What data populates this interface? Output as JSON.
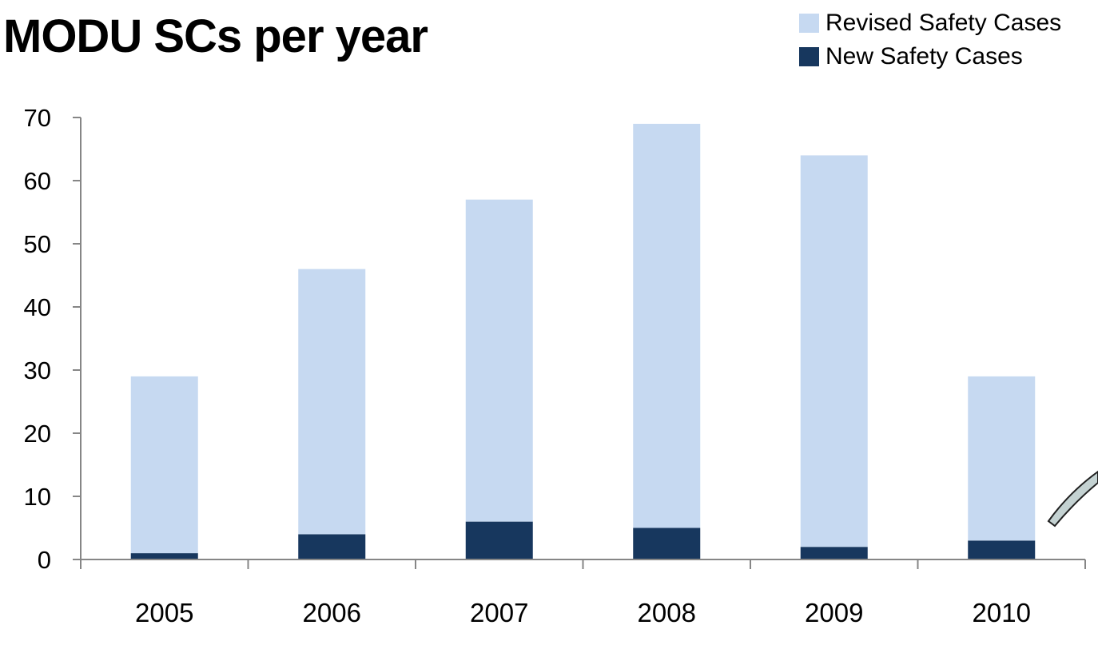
{
  "title": "MODU SCs per year",
  "colors": {
    "revised": "#c6d9f1",
    "new": "#17375e",
    "axis": "#868686",
    "connector_fill": "#c4d2d2",
    "connector_stroke": "#1f1f1f"
  },
  "legend": [
    {
      "label": "Revised Safety Cases",
      "color": "#c6d9f1"
    },
    {
      "label": "New Safety Cases",
      "color": "#17375e"
    }
  ],
  "chart_data": {
    "type": "bar",
    "stacked": true,
    "title": "MODU SCs per year",
    "xlabel": "",
    "ylabel": "",
    "categories": [
      "2005",
      "2006",
      "2007",
      "2008",
      "2009",
      "2010"
    ],
    "series": [
      {
        "name": "New Safety Cases",
        "values": [
          1,
          4,
          6,
          5,
          2,
          3
        ]
      },
      {
        "name": "Revised Safety Cases",
        "values": [
          28,
          42,
          51,
          64,
          62,
          26
        ]
      }
    ],
    "ylim": [
      0,
      70
    ],
    "yticks": [
      0,
      10,
      20,
      30,
      40,
      50,
      60,
      70
    ],
    "grid": false,
    "legend_position": "top-right"
  }
}
